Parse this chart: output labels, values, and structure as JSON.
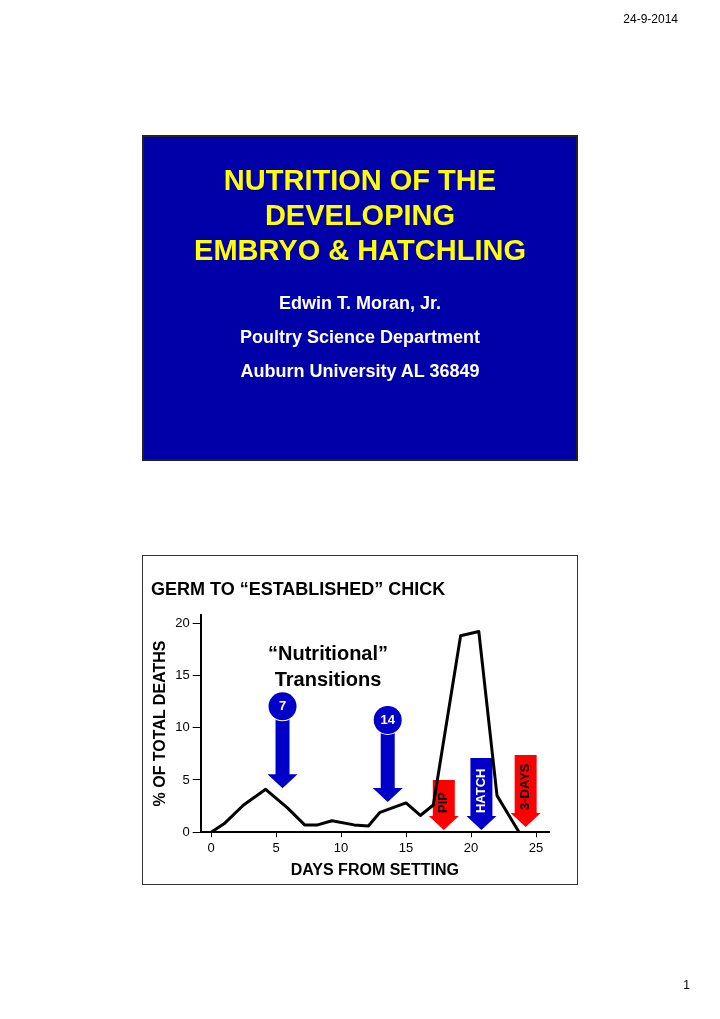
{
  "chart_data": [
    {
      "type": "other",
      "title": "NUTRITION OF THE\nDEVELOPING\nEMBRYO & HATCHLING",
      "annotations": [
        "24-9-2014",
        "Edwin T. Moran, Jr.",
        "Poultry Science Department",
        "Auburn University AL 36849"
      ]
    },
    {
      "type": "line",
      "title": "GERM TO “ESTABLISHED” CHICK",
      "xlabel": "DAYS FROM SETTING",
      "ylabel": "% OF TOTAL DEATHS",
      "x": [
        0,
        1,
        2.5,
        4.2,
        5.9,
        7.2,
        8.2,
        9.3,
        11,
        12.1,
        13,
        15,
        16.1,
        17.1,
        19.2,
        20.6,
        22,
        23.7
      ],
      "series": [
        {
          "color": "#000000",
          "values": [
            0,
            0.8,
            2.6,
            4.1,
            2.3,
            0.7,
            0.7,
            1.1,
            0.7,
            0.6,
            1.9,
            2.8,
            1.6,
            2.6,
            18.8,
            19.2,
            3.5,
            0
          ]
        }
      ],
      "xlim": [
        -0.8,
        26
      ],
      "ylim": [
        0,
        20.8
      ],
      "xticks": [
        0,
        5,
        10,
        15,
        20,
        25
      ],
      "yticks": [
        0,
        5,
        10,
        15,
        20
      ],
      "grid": false,
      "legend": false,
      "marker": "none",
      "line_style": "solid",
      "annotations": [
        "“Nutritional”\nTransitions",
        "7",
        "14",
        "PIP",
        "HATCH",
        "3-DAYS",
        "1"
      ]
    }
  ]
}
